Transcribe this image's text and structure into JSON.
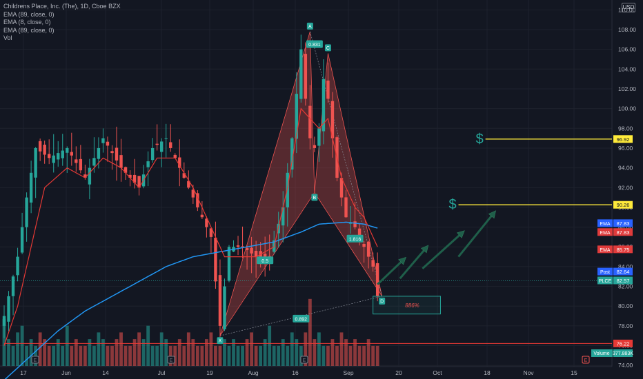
{
  "header": {
    "title": "Childrens Place, Inc. (The), 1D, Cboe BZX",
    "indicators": [
      "EMA (89, close, 0)",
      "EMA (8, close, 0)",
      "EMA (89, close, 0)",
      "Vol"
    ],
    "currency": "USD"
  },
  "chart_data": {
    "type": "candlestick",
    "x_ticks": [
      "17",
      "Jun",
      "14",
      "Jul",
      "19",
      "Aug",
      "16",
      "Sep",
      "20",
      "Oct",
      "18",
      "Nov",
      "15"
    ],
    "y_ticks": [
      74,
      76,
      78,
      80,
      82,
      84,
      86,
      88,
      90,
      92,
      94,
      96,
      98,
      100,
      102,
      104,
      106,
      108,
      110
    ],
    "ylim": [
      72.2,
      111
    ],
    "grid": true,
    "candle_count": 84,
    "price_path": [
      [
        0,
        79
      ],
      [
        3,
        85
      ],
      [
        5,
        91
      ],
      [
        7,
        96
      ],
      [
        10,
        95
      ],
      [
        14,
        96
      ],
      [
        18,
        93
      ],
      [
        22,
        97
      ],
      [
        26,
        94
      ],
      [
        30,
        92
      ],
      [
        33,
        96
      ],
      [
        36,
        97
      ],
      [
        40,
        93
      ],
      [
        43,
        90
      ],
      [
        46,
        87
      ],
      [
        48,
        78
      ],
      [
        50,
        86
      ],
      [
        53,
        86
      ],
      [
        56,
        85
      ],
      [
        59,
        85
      ],
      [
        62,
        90
      ],
      [
        64,
        97
      ],
      [
        66,
        106
      ],
      [
        67,
        101
      ],
      [
        68,
        97
      ],
      [
        69,
        96
      ],
      [
        70,
        98
      ],
      [
        71,
        103
      ],
      [
        72,
        101
      ],
      [
        74,
        93
      ],
      [
        76,
        89
      ],
      [
        78,
        88
      ],
      [
        80,
        86
      ],
      [
        82,
        84
      ],
      [
        83,
        81
      ]
    ],
    "ema_fast_path": [
      [
        0,
        76
      ],
      [
        3,
        80
      ],
      [
        6,
        86
      ],
      [
        9,
        92
      ],
      [
        14,
        94
      ],
      [
        18,
        93
      ],
      [
        22,
        95
      ],
      [
        26,
        94
      ],
      [
        30,
        92
      ],
      [
        34,
        95
      ],
      [
        38,
        95
      ],
      [
        42,
        92
      ],
      [
        46,
        88
      ],
      [
        49,
        85
      ],
      [
        52,
        85
      ],
      [
        56,
        85
      ],
      [
        60,
        86
      ],
      [
        63,
        92
      ],
      [
        66,
        100
      ],
      [
        68,
        99
      ],
      [
        70,
        98
      ],
      [
        72,
        99
      ],
      [
        75,
        93
      ],
      [
        78,
        90
      ],
      [
        80,
        89
      ],
      [
        82,
        87
      ],
      [
        83,
        86
      ]
    ],
    "ema_slow_path": [
      [
        0,
        72.5
      ],
      [
        6,
        75
      ],
      [
        12,
        77.5
      ],
      [
        18,
        79.5
      ],
      [
        24,
        81
      ],
      [
        30,
        82.5
      ],
      [
        36,
        84
      ],
      [
        42,
        85
      ],
      [
        48,
        85.5
      ],
      [
        54,
        86
      ],
      [
        60,
        86.5
      ],
      [
        66,
        87.5
      ],
      [
        70,
        88.3
      ],
      [
        76,
        88.5
      ],
      [
        80,
        88.3
      ],
      [
        83,
        87.9
      ]
    ],
    "volume_relative": [
      0.7,
      0.4,
      0.3,
      0.5,
      0.6,
      0.3,
      0.4,
      0.3,
      0.5,
      0.4,
      0.3,
      0.3,
      0.4,
      0.3,
      0.6,
      0.3,
      0.4,
      0.3,
      0.3,
      0.4,
      0.3,
      0.5,
      0.4,
      0.3,
      0.3,
      0.4,
      0.5,
      0.3,
      0.3,
      0.4,
      0.5,
      0.4,
      0.6,
      0.3,
      0.3,
      0.5,
      0.4,
      0.3,
      0.3,
      0.4,
      0.3,
      0.5,
      0.4,
      0.3,
      0.3,
      0.4,
      0.5,
      0.3,
      0.3,
      0.4,
      0.3,
      0.4,
      0.3,
      0.3,
      0.4,
      0.5,
      0.3,
      0.3,
      0.4,
      0.6,
      0.3,
      0.3,
      0.4,
      0.3,
      0.5,
      0.4,
      0.3,
      0.5,
      1.0,
      0.4,
      0.5,
      0.3,
      0.3,
      0.4,
      0.3,
      0.5,
      0.4,
      0.3,
      0.4,
      0.3,
      0.3,
      0.4,
      0.3,
      0.3
    ],
    "pattern": {
      "points": [
        {
          "label": "X",
          "i": 48,
          "price": 77.0
        },
        {
          "label": "A",
          "i": 68,
          "price": 107.8
        },
        {
          "label": "B",
          "i": 69,
          "price": 91.5
        },
        {
          "label": "C",
          "i": 72,
          "price": 105.6
        },
        {
          "label": "D",
          "i": 84,
          "price": 81.0
        }
      ],
      "ratios": [
        {
          "text": "0.831",
          "i": 69,
          "price": 106.5
        },
        {
          "text": "0.5",
          "i": 58,
          "price": 84.6
        },
        {
          "text": "1.816",
          "i": 78,
          "price": 86.8
        },
        {
          "text": "0.892",
          "i": 66,
          "price": 78.7
        }
      ],
      "target_box_text": "886%",
      "target_box": {
        "i0": 82,
        "i1": 97,
        "p0": 81.0,
        "p1": 79.2
      }
    },
    "arrows": [
      {
        "i0": 83,
        "p0": 82.2,
        "i1": 89,
        "p1": 84.8
      },
      {
        "i0": 88,
        "p0": 82.8,
        "i1": 94,
        "p1": 86.0
      },
      {
        "i0": 93,
        "p0": 83.8,
        "i1": 102,
        "p1": 87.5
      },
      {
        "i0": 101,
        "p0": 85.0,
        "i1": 109,
        "p1": 89.5
      }
    ],
    "level_lines": [
      {
        "price": 96.92,
        "label": "96.92",
        "from_i": 107,
        "dollar": true
      },
      {
        "price": 90.26,
        "label": "90.26",
        "from_i": 101,
        "dollar": true
      },
      {
        "price": 76.22,
        "label": "76.22",
        "from_i": 0,
        "dollar": false
      }
    ],
    "current_price": 82.57,
    "price_tags": [
      {
        "text": "87.83",
        "prefix": "EMA",
        "price": 88.4,
        "color": "#2962ff"
      },
      {
        "text": "87.83",
        "prefix": "EMA",
        "price": 87.5,
        "color": "#e03b3b"
      },
      {
        "text": "85.75",
        "prefix": "EMA",
        "price": 85.75,
        "color": "#e03b3b"
      },
      {
        "text": "82.64",
        "prefix": "Post",
        "price": 83.5,
        "color": "#2962ff"
      },
      {
        "text": "82.57",
        "prefix": "PLCE",
        "price": 82.6,
        "color": "#26a69a"
      }
    ],
    "volume_label": "Volume",
    "volume_value": "377.883K",
    "event_markers": [
      "E",
      "E",
      "E",
      "E"
    ]
  },
  "colors": {
    "background": "#131722",
    "up": "#26a69a",
    "down": "#ef5350",
    "ema_fast": "#e53935",
    "ema_slow": "#2196f3",
    "level": "#ffeb3b",
    "support": "#e53935",
    "pattern_fill": "rgba(239,83,80,0.30)",
    "arrow": "#1f5f4a"
  }
}
